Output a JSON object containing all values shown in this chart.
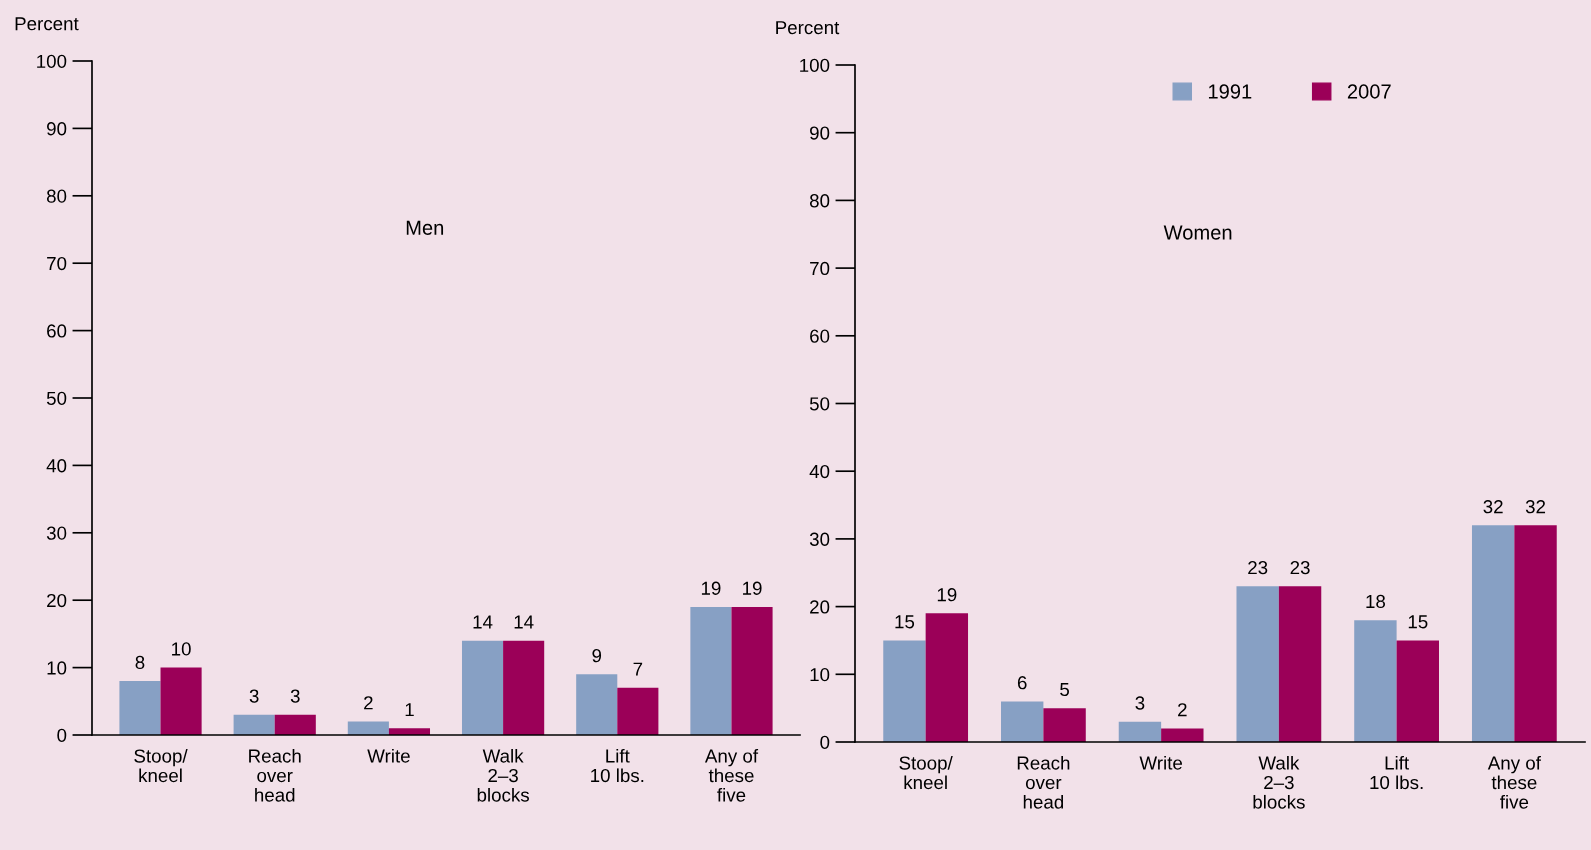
{
  "chart_data": [
    {
      "type": "bar",
      "title": "Men",
      "ylabel": "Percent",
      "categories": [
        "Stoop/\nkneel",
        "Reach\nover\nhead",
        "Write",
        "Walk\n2–3\nblocks",
        "Lift\n10 lbs.",
        "Any of\nthese\nfive"
      ],
      "series": [
        {
          "color": "#87a0c4",
          "values": [
            8,
            3,
            2,
            14,
            9,
            19
          ]
        },
        {
          "color": "#9b0058",
          "values": [
            10,
            3,
            1,
            14,
            7,
            19
          ]
        }
      ],
      "ylim": [
        0,
        100
      ],
      "yticks": [
        0,
        10,
        20,
        30,
        40,
        50,
        60,
        70,
        80,
        90,
        100
      ],
      "data_labels": true,
      "grid": false,
      "legend": false
    },
    {
      "type": "bar",
      "title": "Women",
      "ylabel": "Percent",
      "categories": [
        "Stoop/\nkneel",
        "Reach\nover\nhead",
        "Write",
        "Walk\n2–3\nblocks",
        "Lift\n10 lbs.",
        "Any of\nthese\nfive"
      ],
      "series": [
        {
          "name": "1991",
          "color": "#87a0c4",
          "values": [
            15,
            6,
            3,
            23,
            18,
            32
          ]
        },
        {
          "name": "2007",
          "color": "#9b0058",
          "values": [
            19,
            5,
            2,
            23,
            15,
            32
          ]
        }
      ],
      "ylim": [
        0,
        100
      ],
      "yticks": [
        0,
        10,
        20,
        30,
        40,
        50,
        60,
        70,
        80,
        90,
        100
      ],
      "data_labels": true,
      "grid": false,
      "legend": "top right"
    }
  ]
}
